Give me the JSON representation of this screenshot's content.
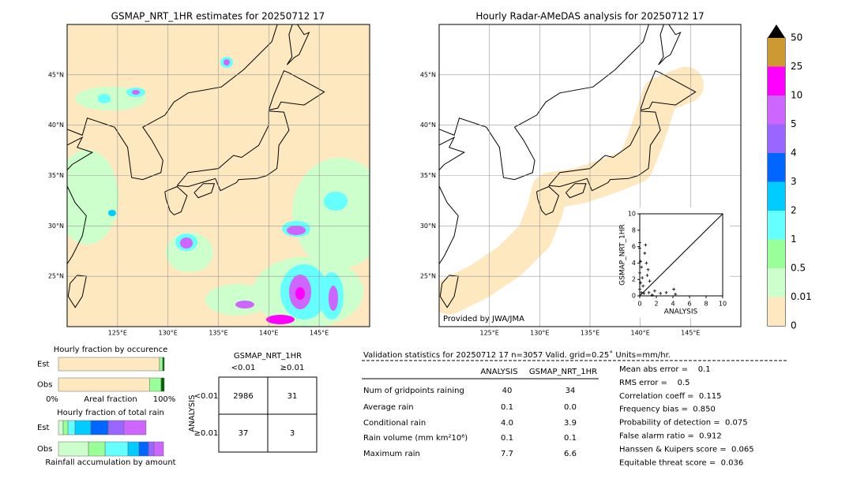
{
  "maps": [
    {
      "title": "GSMAP_NRT_1HR estimates for 20250712 17"
    },
    {
      "title": "Hourly Radar-AMeDAS analysis for 20250712 17",
      "credit": "Provided by JWA/JMA"
    }
  ],
  "lonlim": [
    120,
    150
  ],
  "latlim": [
    20,
    50
  ],
  "lonticks": [
    {
      "value": 125,
      "label": "125°E"
    },
    {
      "value": 130,
      "label": "130°E"
    },
    {
      "value": 135,
      "label": "135°E"
    },
    {
      "value": 140,
      "label": "140°E"
    },
    {
      "value": 145,
      "label": "145°E"
    }
  ],
  "latticks": [
    {
      "value": 25,
      "label": "25°N"
    },
    {
      "value": 30,
      "label": "30°N"
    },
    {
      "value": 35,
      "label": "35°N"
    },
    {
      "value": 40,
      "label": "40°N"
    },
    {
      "value": 45,
      "label": "45°N"
    }
  ],
  "colorbar": {
    "levels": [
      0,
      0.01,
      0.5,
      1,
      2,
      3,
      4,
      5,
      10,
      25,
      50
    ],
    "colors": [
      "#fde8c0",
      "#ccffcc",
      "#99ff99",
      "#66ffff",
      "#00ccff",
      "#0066ff",
      "#9966ff",
      "#cc66ff",
      "#ff00ff",
      "#cc9933"
    ],
    "extend_color": "#000000"
  },
  "chart_data": {
    "type": "scatter",
    "x": [
      0,
      0,
      0.1,
      0.2,
      0,
      0.3,
      0.1,
      0.4,
      0,
      0.2,
      0.5,
      0.6,
      0.8,
      1.0,
      0.7,
      1.2,
      1.1,
      1.8,
      2.5,
      3.2,
      4.1,
      4.3,
      0.9,
      1.5
    ],
    "y": [
      6.5,
      5.8,
      4.2,
      3.5,
      2.8,
      2.2,
      1.6,
      1.2,
      0.8,
      0.4,
      0.3,
      5.2,
      4.0,
      3.2,
      6.2,
      1.8,
      0.4,
      0.6,
      0.3,
      0.4,
      0.8,
      0.2,
      2.5,
      0.1
    ],
    "xlim": [
      0,
      10
    ],
    "ylim": [
      0,
      10
    ],
    "xticks": [
      0,
      2,
      4,
      6,
      8,
      10
    ],
    "yticks": [
      0,
      2,
      4,
      6,
      8,
      10
    ],
    "x_label": "ANALYSIS",
    "y_label": "GSMAP_NRT_1HR",
    "color": "#000000"
  },
  "occurrence": {
    "title": "Hourly fraction by occurence",
    "rows": [
      "Est",
      "Obs"
    ],
    "xlabel": "Areal fraction",
    "left": "0%",
    "right": "100%",
    "series": [
      {
        "color": "#fde8c0",
        "values": [
          0.955,
          0.86
        ]
      },
      {
        "color": "#99ff99",
        "values": [
          0.03,
          0.11
        ]
      },
      {
        "color": "#006600",
        "values": [
          0.015,
          0.03
        ]
      }
    ]
  },
  "total": {
    "title": "Hourly fraction of total rain",
    "rows": [
      "Est",
      "Obs"
    ],
    "xlabel": "Rainfall accumulation by amount",
    "series": [
      {
        "color": "#ccffcc",
        "values": [
          0.045,
          0.284
        ]
      },
      {
        "color": "#99ff99",
        "values": [
          0.045,
          0.157
        ]
      },
      {
        "color": "#66ffff",
        "values": [
          0.067,
          0.216
        ]
      },
      {
        "color": "#00ccff",
        "values": [
          0.149,
          0.104
        ]
      },
      {
        "color": "#0066ff",
        "values": [
          0.164,
          0.09
        ]
      },
      {
        "color": "#9966ff",
        "values": [
          0.149,
          0.052
        ]
      },
      {
        "color": "#cc66ff",
        "values": [
          0.209,
          0.09
        ]
      }
    ]
  },
  "contingency": {
    "title": "GSMAP_NRT_1HR",
    "cols": [
      "<0.01",
      "≥0.01"
    ],
    "row_title": "ANALYSIS",
    "rows": [
      "<0.01",
      "≥0.01"
    ],
    "cells": [
      [
        "2986",
        "31"
      ],
      [
        "37",
        "3"
      ]
    ]
  },
  "stats": {
    "title": "Validation statistics for 20250712 17  n=3057 Valid. grid=0.25˚ Units=mm/hr.",
    "cols": [
      "ANALYSIS",
      "GSMAP_NRT_1HR"
    ],
    "rows": [
      [
        "Num of gridpoints raining",
        "40",
        "34"
      ],
      [
        "Average rain",
        "0.1",
        "0.0"
      ],
      [
        "Conditional rain",
        "4.0",
        "3.9"
      ],
      [
        "Rain volume (mm km²10⁶)",
        "0.1",
        "0.1"
      ],
      [
        "Maximum rain",
        "7.7",
        "6.6"
      ]
    ],
    "scores": [
      "Mean abs error =    0.1",
      "RMS error =    0.5",
      "Correlation coeff =  0.115",
      "Frequency bias =  0.850",
      "Probability of detection =  0.075",
      "False alarm ratio =  0.912",
      "Hanssen & Kuipers score =  0.065",
      "Equitable threat score =  0.036"
    ]
  }
}
